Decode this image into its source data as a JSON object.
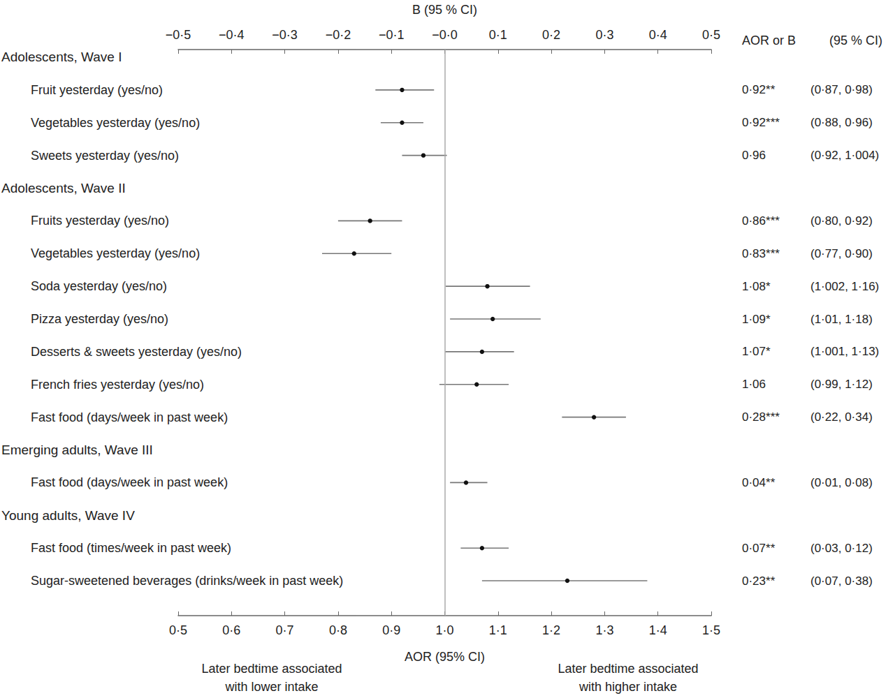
{
  "chart_data": {
    "type": "forest",
    "x_label": "AOR (95% CI)",
    "x2_label": "B (95 % CI)",
    "xlim": [
      0.5,
      1.5
    ],
    "xticks": [
      {
        "value": 0.5,
        "label": "0·5"
      },
      {
        "value": 0.6,
        "label": "0·6"
      },
      {
        "value": 0.7,
        "label": "0·7"
      },
      {
        "value": 0.8,
        "label": "0·8"
      },
      {
        "value": 0.9,
        "label": "0·9"
      },
      {
        "value": 1.0,
        "label": "1·0"
      },
      {
        "value": 1.1,
        "label": "1·1"
      },
      {
        "value": 1.2,
        "label": "1·2"
      },
      {
        "value": 1.3,
        "label": "1·3"
      },
      {
        "value": 1.4,
        "label": "1·4"
      },
      {
        "value": 1.5,
        "label": "1·5"
      }
    ],
    "x2lim": [
      -0.5,
      0.5
    ],
    "x2ticks": [
      {
        "value": -0.5,
        "label": "−0·5"
      },
      {
        "value": -0.4,
        "label": "−0·4"
      },
      {
        "value": -0.3,
        "label": "−0·3"
      },
      {
        "value": -0.2,
        "label": "−0·2"
      },
      {
        "value": -0.1,
        "label": "−0·1"
      },
      {
        "value": 0,
        "label": "−0·0"
      },
      {
        "value": 0.1,
        "label": "0·1"
      },
      {
        "value": 0.2,
        "label": "0·2"
      },
      {
        "value": 0.3,
        "label": "0·3"
      },
      {
        "value": 0.4,
        "label": "0·4"
      },
      {
        "value": 0.5,
        "label": "0·5"
      }
    ],
    "reference_line": 1.0,
    "value_column_title": "AOR or B",
    "ci_column_title": "(95 % CI)",
    "annotations": [
      {
        "text": "Later bedtime associated\nwith lower intake",
        "side": "left"
      },
      {
        "text": "Later bedtime associated\nwith higher intake",
        "side": "right"
      }
    ],
    "groups": [
      {
        "name": "Adolescents, Wave I",
        "items": [
          {
            "label": "Fruit yesterday (yes/no)",
            "axis": "x",
            "value": 0.92,
            "ci": [
              0.87,
              0.98
            ],
            "value_label": "0·92**",
            "ci_label": "(0·87, 0·98)"
          },
          {
            "label": "Vegetables yesterday (yes/no)",
            "axis": "x",
            "value": 0.92,
            "ci": [
              0.88,
              0.96
            ],
            "value_label": "0·92***",
            "ci_label": "(0·88, 0·96)"
          },
          {
            "label": "Sweets yesterday (yes/no)",
            "axis": "x",
            "value": 0.96,
            "ci": [
              0.92,
              1.004
            ],
            "value_label": "0·96",
            "ci_label": "(0·92, 1·004)"
          }
        ]
      },
      {
        "name": "Adolescents, Wave II",
        "items": [
          {
            "label": "Fruits yesterday (yes/no)",
            "axis": "x",
            "value": 0.86,
            "ci": [
              0.8,
              0.92
            ],
            "value_label": "0·86***",
            "ci_label": "(0·80, 0·92)"
          },
          {
            "label": "Vegetables yesterday (yes/no)",
            "axis": "x",
            "value": 0.83,
            "ci": [
              0.77,
              0.9
            ],
            "value_label": "0·83***",
            "ci_label": "(0·77, 0·90)"
          },
          {
            "label": "Soda yesterday (yes/no)",
            "axis": "x",
            "value": 1.08,
            "ci": [
              1.002,
              1.16
            ],
            "value_label": "1·08*",
            "ci_label": "(1·002, 1·16)"
          },
          {
            "label": "Pizza yesterday (yes/no)",
            "axis": "x",
            "value": 1.09,
            "ci": [
              1.01,
              1.18
            ],
            "value_label": "1·09*",
            "ci_label": "(1·01, 1·18)"
          },
          {
            "label": "Desserts & sweets yesterday (yes/no)",
            "axis": "x",
            "value": 1.07,
            "ci": [
              1.001,
              1.13
            ],
            "value_label": "1·07*",
            "ci_label": "(1·001, 1·13)"
          },
          {
            "label": "French fries yesterday (yes/no)",
            "axis": "x",
            "value": 1.06,
            "ci": [
              0.99,
              1.12
            ],
            "value_label": "1·06",
            "ci_label": "(0·99, 1·12)"
          },
          {
            "label": "Fast food (days/week in past week)",
            "axis": "x2",
            "value": 0.28,
            "ci": [
              0.22,
              0.34
            ],
            "value_label": "0·28***",
            "ci_label": "(0·22, 0·34)"
          }
        ]
      },
      {
        "name": "Emerging adults, Wave III",
        "items": [
          {
            "label": "Fast food (days/week in past week)",
            "axis": "x2",
            "value": 0.04,
            "ci": [
              0.01,
              0.08
            ],
            "value_label": "0·04**",
            "ci_label": "(0·01, 0·08)"
          }
        ]
      },
      {
        "name": "Young adults, Wave IV",
        "items": [
          {
            "label": "Fast food (times/week in past week)",
            "axis": "x2",
            "value": 0.07,
            "ci": [
              0.03,
              0.12
            ],
            "value_label": "0·07**",
            "ci_label": "(0·03, 0·12)"
          },
          {
            "label": "Sugar-sweetened beverages (drinks/week in past week)",
            "axis": "x2",
            "value": 0.23,
            "ci": [
              0.07,
              0.38
            ],
            "value_label": "0·23**",
            "ci_label": "(0·07, 0·38)"
          }
        ]
      }
    ]
  }
}
